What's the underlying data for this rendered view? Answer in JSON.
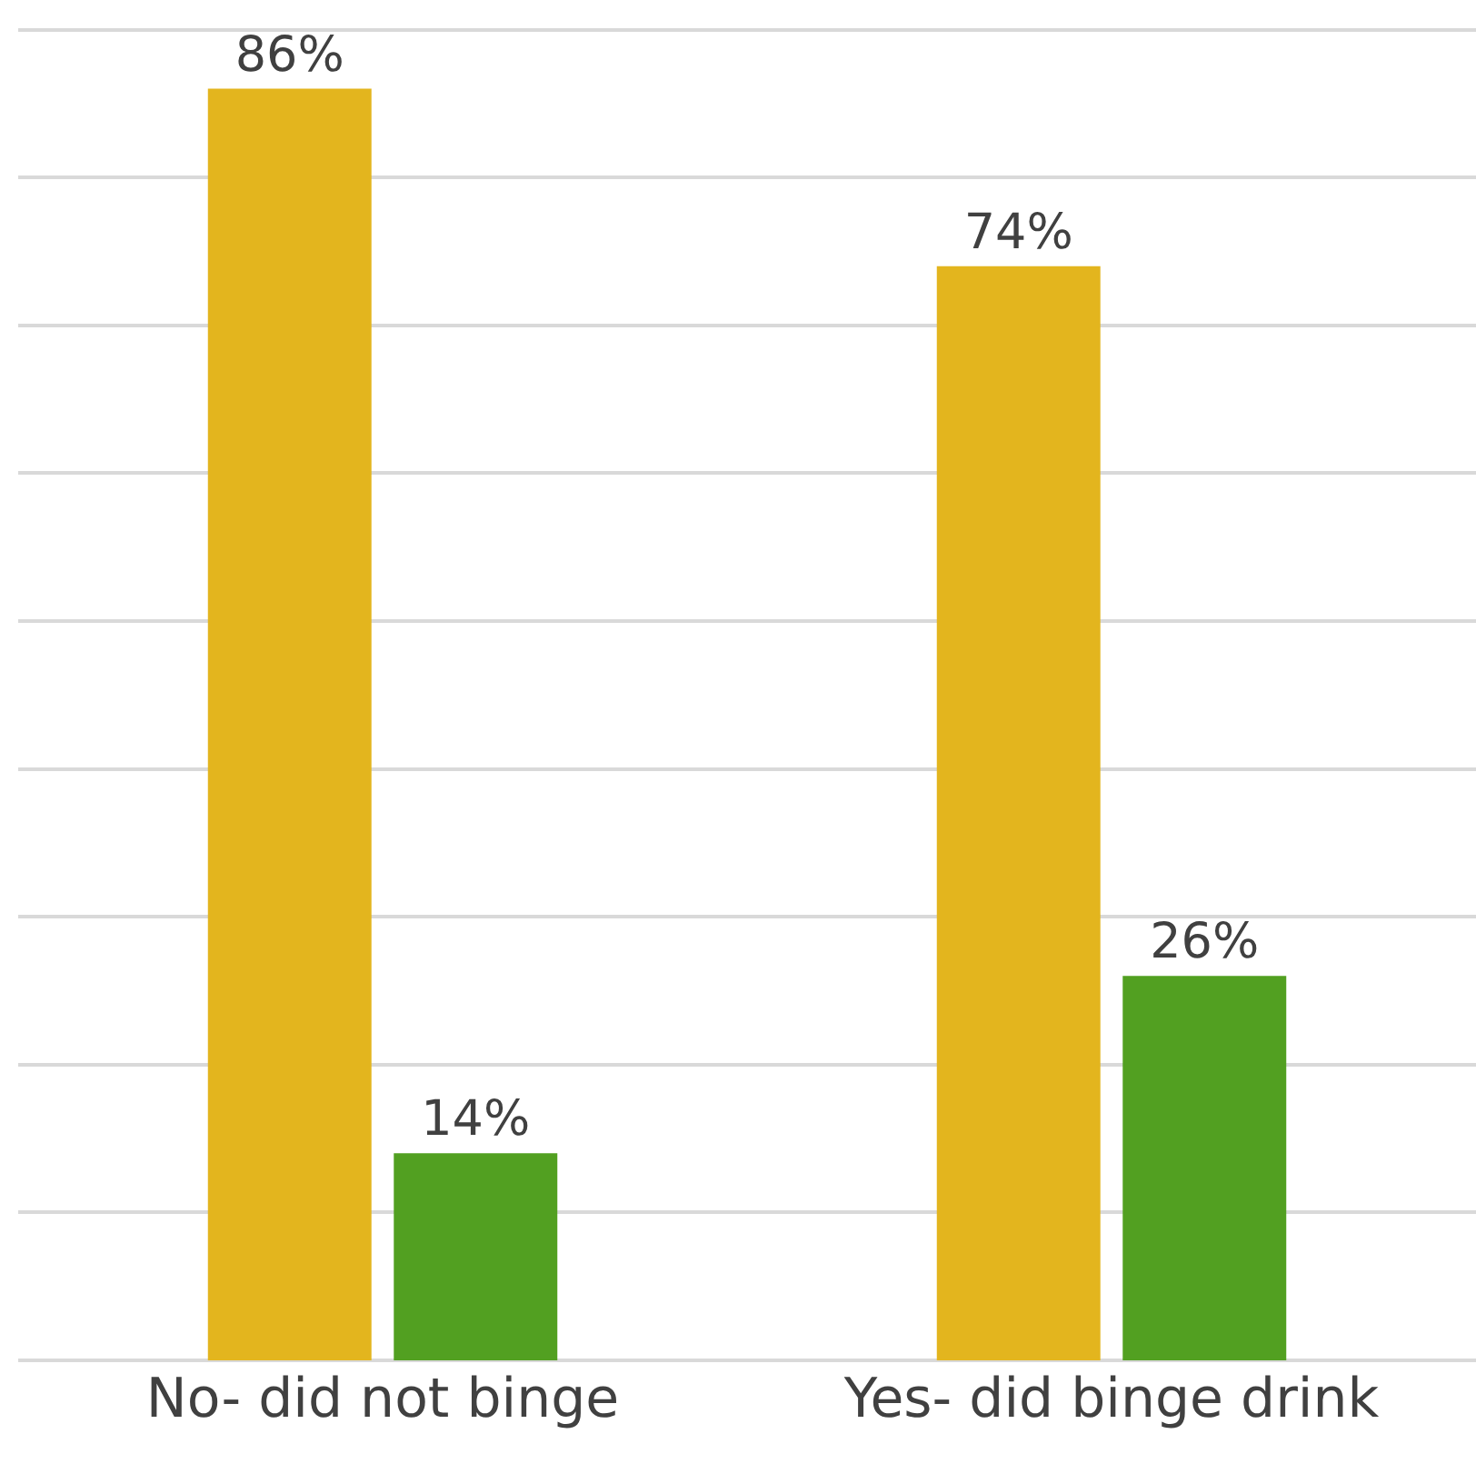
{
  "chart_data": {
    "type": "bar",
    "categories": [
      "No- did not binge",
      "Yes- did binge drink"
    ],
    "series": [
      {
        "color": "#e3b51e",
        "values": [
          86,
          74
        ],
        "value_labels": [
          "86%",
          "74%"
        ]
      },
      {
        "color": "#52a021",
        "values": [
          14,
          26
        ],
        "value_labels": [
          "14%",
          "26%"
        ]
      }
    ],
    "grid": "y",
    "tick_labels": "x"
  }
}
